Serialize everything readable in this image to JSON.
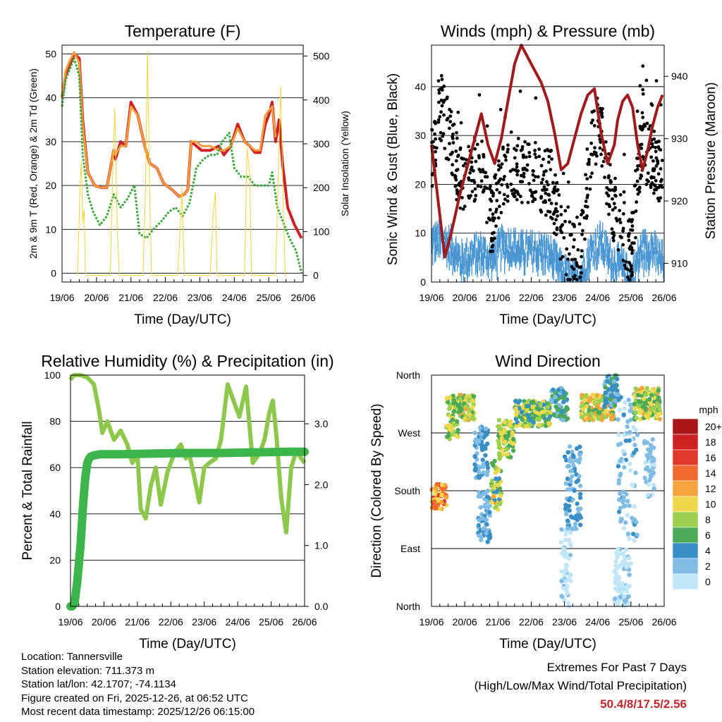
{
  "colors": {
    "red": "#cc2222",
    "orange": "#f59a3a",
    "green_td": "#3aa83a",
    "yellow": "#f5d33a",
    "black": "#000000",
    "blue": "#4a96d2",
    "maroon": "#a01c1c",
    "rh_green": "#8cc84b",
    "rain_green": "#3cb54a",
    "extremes": "#c0272d"
  },
  "info": {
    "location": "Location: Tannersville",
    "elevation": "Station elevation: 711.373 m",
    "latlon": "Station lat/lon: 42.1707; -74.1134",
    "created": "Figure created on Fri, 2025-12-26, at 06:52 UTC",
    "latest": "Most recent data timestamp: 2025/12/26 06:15:00"
  },
  "extremes": {
    "title": "Extremes For Past 7 Days",
    "subtitle": "(High/Low/Max Wind/Total Precipitation)",
    "values": "50.4/8/17.5/2.56"
  },
  "chart_data": [
    {
      "id": "temperature",
      "type": "line",
      "title": "Temperature (F)",
      "xlabel": "Time (Day/UTC)",
      "ylabel": "2m & 9m T (Red, Orange) & 2m Td (Green)",
      "y2label": "Solar Insolation (Yellow)",
      "xticks": [
        "19/06",
        "20/06",
        "21/06",
        "22/06",
        "23/06",
        "24/06",
        "25/06",
        "26/06"
      ],
      "xlim": [
        0,
        7
      ],
      "ylim": [
        -2,
        52
      ],
      "yticks": [
        0,
        10,
        20,
        30,
        40,
        50
      ],
      "grid": true,
      "y2lim": [
        -15,
        525
      ],
      "y2ticks": [
        0,
        100,
        200,
        300,
        400,
        500
      ],
      "series": [
        {
          "name": "2m T",
          "color": "red",
          "width": 4,
          "x": [
            0,
            0.1,
            0.2,
            0.35,
            0.5,
            0.6,
            0.75,
            0.95,
            1.15,
            1.3,
            1.5,
            1.55,
            1.7,
            1.85,
            2.0,
            2.2,
            2.4,
            2.55,
            2.75,
            2.95,
            3.2,
            3.4,
            3.55,
            3.65,
            3.75,
            3.9,
            4.05,
            4.3,
            4.55,
            4.7,
            4.9,
            5.1,
            5.3,
            5.45,
            5.6,
            5.75,
            5.9,
            6.0,
            6.1,
            6.2,
            6.3,
            6.4,
            6.55,
            6.75,
            6.95
          ],
          "y": [
            40,
            45,
            47,
            50,
            49,
            35,
            23,
            20,
            19.5,
            19.5,
            28,
            26,
            30,
            29,
            39,
            36,
            29,
            25,
            24,
            20.5,
            19,
            17.5,
            18,
            19,
            30,
            29,
            28,
            28,
            29,
            27,
            29,
            34,
            30,
            29,
            27.5,
            27.5,
            34,
            36,
            39,
            30,
            35,
            25,
            15,
            11,
            8
          ]
        },
        {
          "name": "9m T",
          "color": "orange",
          "width": 3,
          "x": [
            0,
            0.1,
            0.2,
            0.35,
            0.5,
            0.6,
            0.75,
            0.95,
            1.15,
            1.3,
            1.5,
            1.55,
            1.7,
            1.85,
            2.0,
            2.2,
            2.4,
            2.55,
            2.75,
            2.95,
            3.2,
            3.4,
            3.55,
            3.65,
            3.75,
            3.9,
            4.05,
            4.3,
            4.55,
            4.7,
            4.9,
            5.1,
            5.3,
            5.45,
            5.6,
            5.75,
            5.9,
            6.0,
            6.1,
            6.2
          ],
          "y": [
            40,
            46,
            48,
            50.4,
            48,
            34,
            23,
            20,
            19.5,
            19.5,
            28,
            27,
            29,
            29,
            38,
            36,
            29,
            25,
            24,
            20.5,
            19,
            17.5,
            18,
            19,
            30,
            30,
            29,
            29,
            28,
            28,
            29,
            33,
            30,
            29,
            28,
            28,
            36,
            37,
            38,
            31
          ]
        },
        {
          "name": "2m Td",
          "color": "green_td",
          "width": 3,
          "dashed": true,
          "x": [
            0,
            0.1,
            0.2,
            0.35,
            0.5,
            0.6,
            0.75,
            0.9,
            1.1,
            1.3,
            1.5,
            1.7,
            1.9,
            2.1,
            2.25,
            2.45,
            2.65,
            2.9,
            3.1,
            3.3,
            3.5,
            3.7,
            3.9,
            4.1,
            4.3,
            4.5,
            4.65,
            4.85,
            5.0,
            5.2,
            5.4,
            5.6,
            5.8,
            6.0,
            6.1,
            6.25,
            6.4,
            6.6,
            6.8,
            6.95
          ],
          "y": [
            38,
            44,
            46,
            49,
            45,
            27,
            18,
            14,
            11,
            13,
            18,
            15,
            17,
            20,
            9,
            8,
            10,
            12,
            14,
            15,
            13,
            16,
            24,
            26,
            27,
            27,
            30,
            32,
            24,
            22,
            22,
            20,
            20,
            20,
            23,
            15,
            12,
            8,
            5,
            0
          ]
        },
        {
          "name": "Solar Insolation",
          "color": "yellow",
          "width": 1,
          "axis": "y2",
          "x": [
            0.45,
            0.52,
            0.56,
            0.6,
            0.64,
            0.68,
            0.75,
            1.4,
            1.47,
            1.53,
            1.6,
            1.66,
            2.35,
            2.42,
            2.48,
            2.55,
            2.6,
            3.35,
            3.42,
            3.48,
            3.55,
            4.3,
            4.38,
            4.45,
            4.5,
            5.3,
            5.37,
            5.45,
            5.5,
            6.2,
            6.3,
            6.35,
            6.42,
            6.48
          ],
          "y": [
            0,
            200,
            260,
            120,
            150,
            0,
            0,
            0,
            230,
            380,
            120,
            0,
            0,
            180,
            510,
            160,
            0,
            0,
            90,
            200,
            0,
            0,
            130,
            190,
            0,
            0,
            290,
            230,
            0,
            0,
            300,
            430,
            160,
            0
          ]
        }
      ]
    },
    {
      "id": "winds",
      "type": "scatter",
      "title": "Winds (mph) & Pressure (mb)",
      "xlabel": "Time (Day/UTC)",
      "ylabel": "Sonic Wind & Gust (Blue, Black)",
      "y2label": "Station Pressure (Maroon)",
      "xticks": [
        "19/06",
        "20/06",
        "21/06",
        "22/06",
        "23/06",
        "24/06",
        "25/06",
        "26/06"
      ],
      "xlim": [
        0,
        7
      ],
      "ylim": [
        0,
        48.5
      ],
      "yticks": [
        0,
        10,
        20,
        30,
        40
      ],
      "grid": true,
      "y2lim": [
        907,
        945
      ],
      "y2ticks": [
        910,
        920,
        930,
        940
      ],
      "gust_envelope": {
        "x": [
          0,
          0.3,
          0.6,
          0.9,
          1.2,
          1.5,
          1.8,
          2.1,
          2.4,
          2.7,
          3.0,
          3.3,
          3.6,
          3.9,
          4.2,
          4.5,
          4.8,
          5.1,
          5.4,
          5.7,
          6.0,
          6.3,
          6.6,
          6.9
        ],
        "y": [
          25,
          36,
          28,
          20,
          22,
          24,
          12,
          20,
          25,
          22,
          22,
          21,
          20,
          10,
          5,
          8,
          28,
          31,
          16,
          12,
          5,
          28,
          26,
          23
        ]
      },
      "wind_envelope": {
        "x": [
          0,
          0.3,
          0.6,
          0.9,
          1.2,
          1.5,
          1.8,
          2.1,
          2.4,
          2.7,
          3.0,
          3.3,
          3.6,
          3.9,
          4.2,
          4.5,
          4.8,
          5.1,
          5.4,
          5.7,
          6.0,
          6.3,
          6.6,
          6.9
        ],
        "y": [
          10,
          10,
          9,
          6,
          7,
          8,
          6,
          9,
          9,
          8,
          8,
          8,
          7,
          4,
          2,
          3,
          8,
          10,
          6,
          5,
          2,
          8,
          9,
          6
        ]
      },
      "pressure": {
        "x": [
          0,
          0.2,
          0.4,
          0.6,
          0.85,
          1.1,
          1.3,
          1.5,
          1.7,
          1.9,
          2.1,
          2.3,
          2.5,
          2.7,
          2.9,
          3.1,
          3.3,
          3.5,
          3.7,
          3.9,
          4.1,
          4.3,
          4.5,
          4.7,
          4.9,
          5.1,
          5.3,
          5.5,
          5.6,
          5.75,
          5.9,
          6.05,
          6.2,
          6.35,
          6.5,
          6.65,
          6.8,
          6.95
        ],
        "y": [
          929,
          920,
          911,
          915,
          921,
          926,
          930,
          934,
          929,
          926,
          930,
          936,
          942,
          945,
          943,
          941,
          939,
          936,
          931,
          925,
          926,
          930,
          934,
          937,
          938,
          931,
          926,
          929,
          933,
          936,
          937,
          935,
          929,
          925,
          928,
          932,
          935,
          937
        ]
      }
    },
    {
      "id": "humidity",
      "type": "line",
      "title": "Relative Humidity (%) & Precipitation (in)",
      "xlabel": "Time (Day/UTC)",
      "ylabel": "Percent & Total Rainfall",
      "xticks": [
        "19/06",
        "20/06",
        "21/06",
        "22/06",
        "23/06",
        "24/06",
        "25/06",
        "26/06"
      ],
      "xlim": [
        0,
        7
      ],
      "ylim": [
        0,
        100
      ],
      "yticks": [
        0,
        20,
        40,
        60,
        80,
        100
      ],
      "grid": true,
      "y2lim": [
        0,
        3.8
      ],
      "y2ticks": [
        "0.0",
        "1.0",
        "2.0",
        "3.0"
      ],
      "series": [
        {
          "name": "Relative Humidity",
          "color": "rh_green",
          "width": 6,
          "x": [
            0,
            0.1,
            0.3,
            0.5,
            0.7,
            0.85,
            0.95,
            1.1,
            1.3,
            1.5,
            1.7,
            1.85,
            2.0,
            2.1,
            2.25,
            2.4,
            2.55,
            2.7,
            2.9,
            3.1,
            3.3,
            3.45,
            3.55,
            3.7,
            3.85,
            4.0,
            4.15,
            4.35,
            4.5,
            4.7,
            4.85,
            5.05,
            5.25,
            5.45,
            5.65,
            5.8,
            5.95,
            6.05,
            6.15,
            6.3,
            6.45,
            6.6,
            6.75,
            6.9,
            7.0
          ],
          "y": [
            98,
            100,
            100,
            99,
            96,
            85,
            75,
            80,
            72,
            76,
            70,
            62,
            66,
            42,
            38,
            52,
            60,
            44,
            58,
            66,
            70,
            64,
            66,
            56,
            45,
            60,
            62,
            64,
            72,
            96,
            90,
            82,
            95,
            62,
            66,
            72,
            84,
            89,
            75,
            47,
            32,
            60,
            67,
            64,
            62
          ]
        },
        {
          "name": "Total Rainfall",
          "color": "rain_green",
          "width": 12,
          "x": [
            0,
            0.05,
            0.12,
            0.2,
            0.3,
            0.38,
            0.45,
            0.5,
            0.55,
            0.6,
            0.7,
            0.9,
            1.5,
            2.5,
            3.5,
            4.5,
            5.5,
            6.5,
            7.0
          ],
          "y": [
            0,
            0,
            0.05,
            0.4,
            1.0,
            1.7,
            2.15,
            2.35,
            2.42,
            2.46,
            2.48,
            2.5,
            2.5,
            2.51,
            2.52,
            2.52,
            2.53,
            2.54,
            2.54
          ]
        }
      ]
    },
    {
      "id": "wind_direction",
      "type": "scatter",
      "title": "Wind Direction",
      "xlabel": "Time (Day/UTC)",
      "ylabel": "Direction (Colored By Speed)",
      "xticks": [
        "19/06",
        "20/06",
        "21/06",
        "22/06",
        "23/06",
        "24/06",
        "25/06",
        "26/06"
      ],
      "xlim": [
        0,
        7
      ],
      "ylim": [
        0,
        360
      ],
      "yticks": [
        "North",
        "East",
        "South",
        "West",
        "North"
      ],
      "grid": true,
      "legend": {
        "title": "mph",
        "labels": [
          "20+",
          "18",
          "16",
          "14",
          "12",
          "10",
          "8",
          "6",
          "4",
          "2",
          "0"
        ]
      },
      "clusters": [
        {
          "x0": 0.0,
          "x1": 0.45,
          "d0": 150,
          "d1": 190,
          "s0": 10,
          "s1": 17
        },
        {
          "x0": 0.45,
          "x1": 0.8,
          "d0": 260,
          "d1": 330,
          "s0": 6,
          "s1": 12
        },
        {
          "x0": 0.8,
          "x1": 1.3,
          "d0": 290,
          "d1": 330,
          "s0": 6,
          "s1": 13
        },
        {
          "x0": 1.3,
          "x1": 1.7,
          "d0": 200,
          "d1": 280,
          "s0": 2,
          "s1": 6
        },
        {
          "x0": 1.4,
          "x1": 1.8,
          "d0": 100,
          "d1": 180,
          "s0": 2,
          "s1": 5
        },
        {
          "x0": 1.8,
          "x1": 2.1,
          "d0": 150,
          "d1": 230,
          "s0": 5,
          "s1": 13
        },
        {
          "x0": 2.0,
          "x1": 2.5,
          "d0": 230,
          "d1": 290,
          "s0": 6,
          "s1": 12
        },
        {
          "x0": 2.5,
          "x1": 3.6,
          "d0": 280,
          "d1": 320,
          "s0": 5,
          "s1": 12
        },
        {
          "x0": 3.6,
          "x1": 4.1,
          "d0": 290,
          "d1": 340,
          "s0": 3,
          "s1": 8
        },
        {
          "x0": 3.9,
          "x1": 4.2,
          "d0": 0,
          "d1": 120,
          "s0": 0,
          "s1": 3
        },
        {
          "x0": 4.0,
          "x1": 4.5,
          "d0": 120,
          "d1": 250,
          "s0": 2,
          "s1": 6
        },
        {
          "x0": 4.5,
          "x1": 5.5,
          "d0": 290,
          "d1": 330,
          "s0": 6,
          "s1": 14
        },
        {
          "x0": 5.2,
          "x1": 5.6,
          "d0": 310,
          "d1": 360,
          "s0": 3,
          "s1": 7
        },
        {
          "x0": 5.5,
          "x1": 6.0,
          "d0": 0,
          "d1": 90,
          "s0": 0,
          "s1": 3
        },
        {
          "x0": 5.6,
          "x1": 6.2,
          "d0": 100,
          "d1": 340,
          "s0": 1,
          "s1": 5
        },
        {
          "x0": 6.1,
          "x1": 6.9,
          "d0": 290,
          "d1": 340,
          "s0": 6,
          "s1": 13
        },
        {
          "x0": 6.4,
          "x1": 6.7,
          "d0": 170,
          "d1": 260,
          "s0": 1,
          "s1": 4
        }
      ]
    }
  ]
}
